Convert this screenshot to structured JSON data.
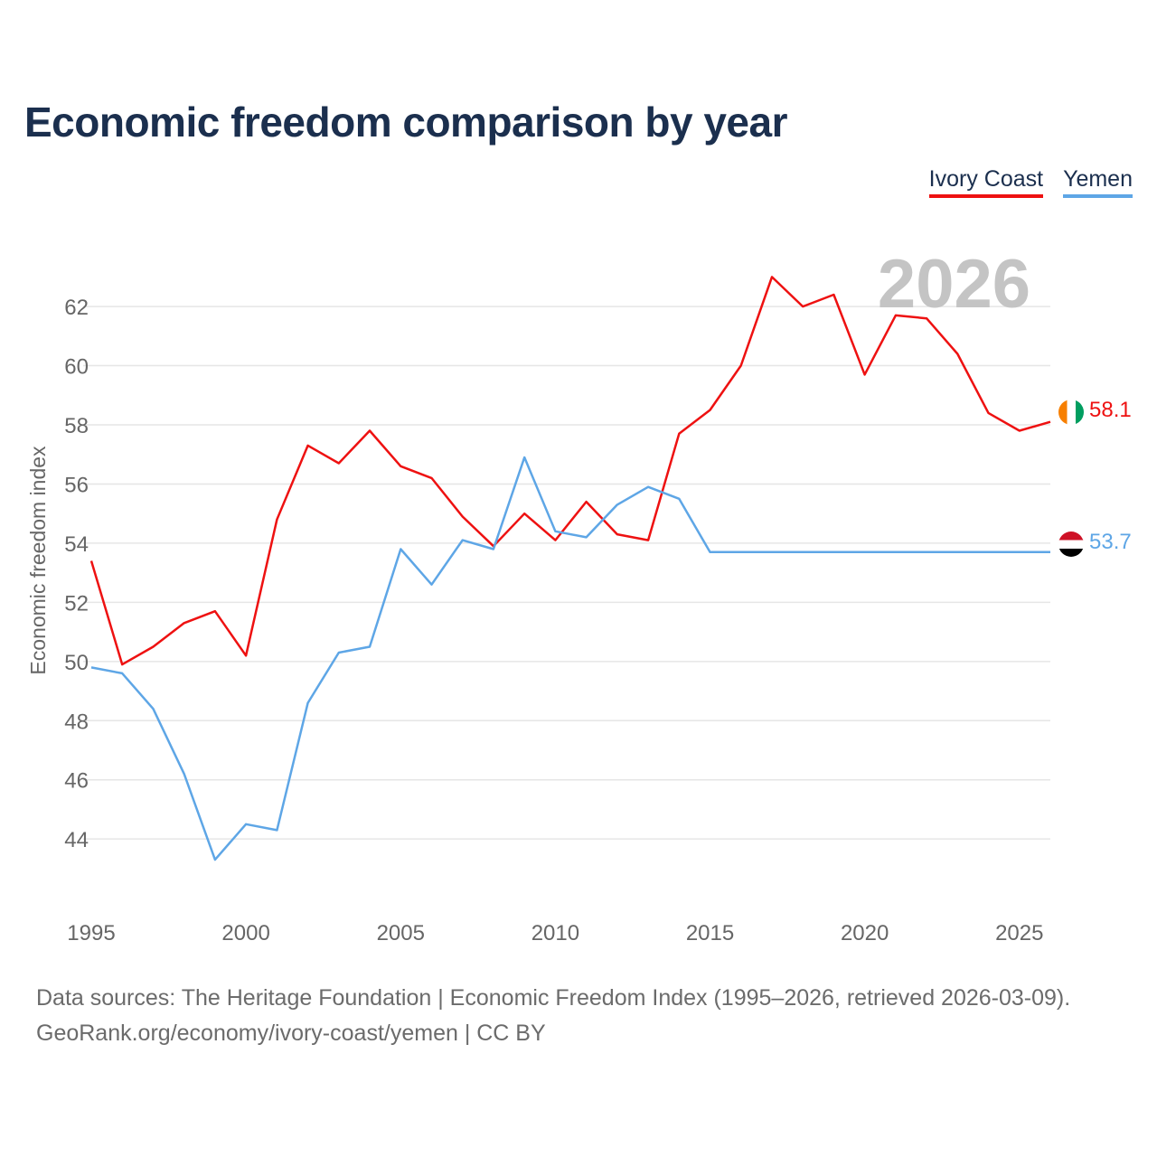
{
  "title": "Economic freedom comparison by year",
  "legend": [
    {
      "label": "Ivory Coast",
      "color": "#ee1111"
    },
    {
      "label": "Yemen",
      "color": "#5ea6e6"
    }
  ],
  "source": {
    "line1": "Data sources: The Heritage Foundation | Economic Freedom Index (1995–2026, retrieved 2026-03-09).",
    "line2": "GeoRank.org/economy/ivory-coast/yemen | CC BY"
  },
  "chart_data": {
    "type": "line",
    "year_label": "2026",
    "ylabel": "Economic freedom index",
    "xlabel": "",
    "xlim": [
      1995,
      2026
    ],
    "ylim": [
      41.5,
      63.5
    ],
    "x_ticks": [
      1995,
      2000,
      2005,
      2010,
      2015,
      2020,
      2025
    ],
    "y_ticks": [
      44,
      46,
      48,
      50,
      52,
      54,
      56,
      58,
      60,
      62
    ],
    "x": [
      1995,
      1996,
      1997,
      1998,
      1999,
      2000,
      2001,
      2002,
      2003,
      2004,
      2005,
      2006,
      2007,
      2008,
      2009,
      2010,
      2011,
      2012,
      2013,
      2014,
      2015,
      2016,
      2017,
      2018,
      2019,
      2020,
      2021,
      2022,
      2023,
      2024,
      2025,
      2026
    ],
    "series": [
      {
        "name": "Ivory Coast",
        "color": "#ee1111",
        "end_label": "58.1",
        "flag": "ivory-coast",
        "values": [
          53.4,
          49.9,
          50.5,
          51.3,
          51.7,
          50.2,
          54.8,
          57.3,
          56.7,
          57.8,
          56.6,
          56.2,
          54.9,
          53.9,
          55.0,
          54.1,
          55.4,
          54.3,
          54.1,
          57.7,
          58.5,
          60.0,
          63.0,
          62.0,
          62.4,
          59.7,
          61.7,
          61.6,
          60.4,
          58.4,
          57.8,
          58.1
        ]
      },
      {
        "name": "Yemen",
        "color": "#5ea6e6",
        "end_label": "53.7",
        "flag": "yemen",
        "values": [
          49.8,
          49.6,
          48.4,
          46.2,
          43.3,
          44.5,
          44.3,
          48.6,
          50.3,
          50.5,
          53.8,
          52.6,
          54.1,
          53.8,
          56.9,
          54.4,
          54.2,
          55.3,
          55.9,
          55.5,
          53.7,
          53.7,
          53.7,
          53.7,
          53.7,
          53.7,
          53.7,
          53.7,
          53.7,
          53.7,
          53.7,
          53.7
        ]
      }
    ]
  }
}
